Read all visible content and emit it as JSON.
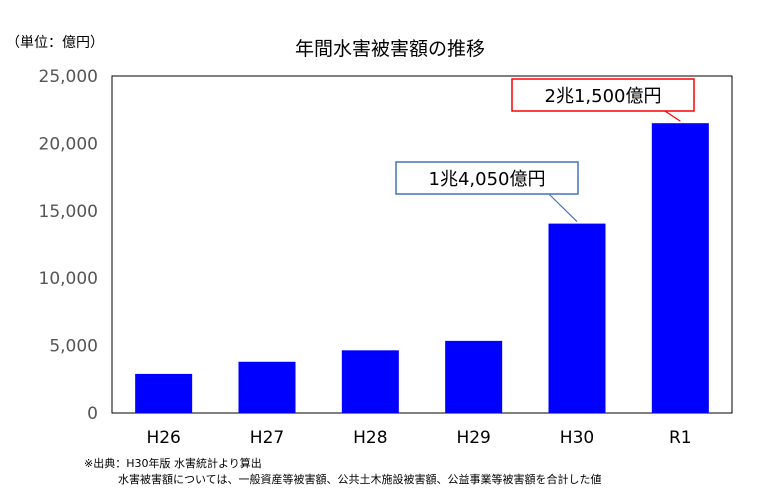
{
  "unit_label": "（単位：億円）",
  "chart_data": {
    "type": "bar",
    "title": "年間水害被害額の推移",
    "categories": [
      "H26",
      "H27",
      "H28",
      "H29",
      "H30",
      "R1"
    ],
    "values": [
      2900,
      3800,
      4650,
      5350,
      14050,
      21500
    ],
    "ylim": [
      0,
      25000
    ],
    "yticks": [
      0,
      5000,
      10000,
      15000,
      20000,
      25000
    ],
    "ytick_labels": [
      "0",
      "5,000",
      "10,000",
      "15,000",
      "20,000",
      "25,000"
    ],
    "grid": false,
    "bar_color": "#0000ff",
    "annotations": [
      {
        "category": "H30",
        "text": "1兆4,050億円",
        "border_color": "#4472c4"
      },
      {
        "category": "R1",
        "text": "2兆1,500億円",
        "border_color": "#ff0000"
      }
    ]
  },
  "note": {
    "line1": "※出典：H30年版 水害統計より算出",
    "line2": "水害被害額については、一般資産等被害額、公共土木施設被害額、公益事業等被害額を合計した値"
  }
}
